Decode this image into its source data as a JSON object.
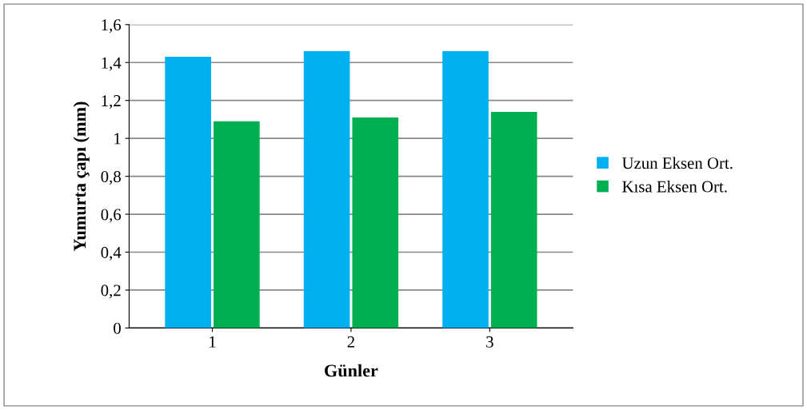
{
  "chart_data": {
    "type": "bar",
    "categories": [
      "1",
      "2",
      "3"
    ],
    "xlabel": "Günler",
    "ylabel": "Yumurta çapı (mm)",
    "series": [
      {
        "name": "Uzun Eksen Ort.",
        "color": "#00b0f0",
        "values": [
          1.43,
          1.46,
          1.46
        ]
      },
      {
        "name": "Kısa Eksen Ort.",
        "color": "#00b050",
        "values": [
          1.09,
          1.11,
          1.14
        ]
      }
    ],
    "ylim": [
      0,
      1.6
    ],
    "yticks": [
      0,
      {
        "value": 0.2,
        "label": "0,2"
      },
      {
        "value": 0.4,
        "label": "0,4"
      },
      {
        "value": 0.6,
        "label": "0,6"
      },
      {
        "value": 0.8,
        "label": "0,8"
      },
      1,
      {
        "value": 1.2,
        "label": "1,2"
      },
      {
        "value": 1.4,
        "label": "1,4"
      },
      {
        "value": 1.6,
        "label": "1,6"
      }
    ],
    "grid": "y",
    "legend": "right"
  }
}
